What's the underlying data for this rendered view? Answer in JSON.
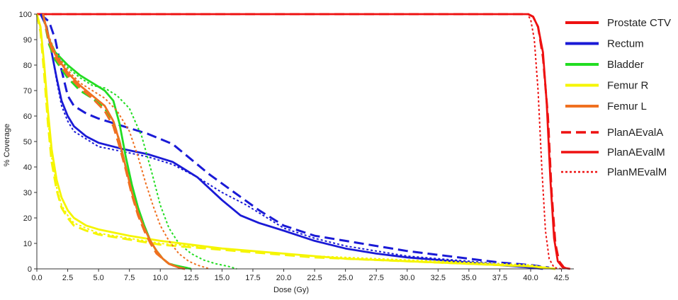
{
  "chart_data": {
    "type": "line",
    "xlabel": "Dose (Gy)",
    "ylabel": "% Coverage",
    "xlim": [
      0,
      43.5
    ],
    "ylim": [
      0,
      100
    ],
    "xticks": [
      "0.0",
      "2.5",
      "5.0",
      "7.5",
      "10.0",
      "12.5",
      "15.0",
      "17.5",
      "20.0",
      "22.5",
      "25.0",
      "27.5",
      "30.0",
      "32.5",
      "35.0",
      "37.5",
      "40.0",
      "42.5"
    ],
    "yticks": [
      "0",
      "10",
      "20",
      "30",
      "40",
      "50",
      "60",
      "70",
      "80",
      "90",
      "100"
    ],
    "grid": false,
    "legend_position": "right",
    "structures": [
      {
        "name": "Prostate CTV",
        "color": "#ee1111"
      },
      {
        "name": "Rectum",
        "color": "#1a1ad6"
      },
      {
        "name": "Bladder",
        "color": "#22dd22"
      },
      {
        "name": "Femur R",
        "color": "#f5f500"
      },
      {
        "name": "Femur L",
        "color": "#f07020"
      }
    ],
    "plans": [
      {
        "name": "PlanAEvalA",
        "style": "dashed"
      },
      {
        "name": "PlanAEvalM",
        "style": "solid"
      },
      {
        "name": "PlanMEvalM",
        "style": "dotted"
      }
    ],
    "series": [
      {
        "structure": "Prostate CTV",
        "plan": "PlanAEvalM",
        "points": [
          [
            0,
            100
          ],
          [
            39.8,
            100
          ],
          [
            40.2,
            99
          ],
          [
            40.6,
            95
          ],
          [
            41,
            85
          ],
          [
            41.3,
            65
          ],
          [
            41.6,
            35
          ],
          [
            41.9,
            12
          ],
          [
            42.2,
            3
          ],
          [
            42.6,
            0.5
          ],
          [
            43.2,
            0
          ]
        ]
      },
      {
        "structure": "Prostate CTV",
        "plan": "PlanAEvalA",
        "points": [
          [
            0,
            100
          ],
          [
            39.8,
            100
          ],
          [
            40.2,
            99
          ],
          [
            40.6,
            95
          ],
          [
            41,
            83
          ],
          [
            41.4,
            60
          ],
          [
            41.7,
            30
          ],
          [
            42,
            10
          ],
          [
            42.3,
            3
          ],
          [
            42.7,
            0.5
          ],
          [
            43.2,
            0
          ]
        ]
      },
      {
        "structure": "Prostate CTV",
        "plan": "PlanMEvalM",
        "points": [
          [
            0,
            100
          ],
          [
            39.7,
            100
          ],
          [
            40,
            98
          ],
          [
            40.3,
            90
          ],
          [
            40.6,
            70
          ],
          [
            40.9,
            40
          ],
          [
            41.2,
            15
          ],
          [
            41.5,
            4
          ],
          [
            41.9,
            0.5
          ],
          [
            42.5,
            0
          ]
        ]
      },
      {
        "structure": "Rectum",
        "plan": "PlanAEvalM",
        "points": [
          [
            0.3,
            100
          ],
          [
            0.8,
            95
          ],
          [
            1.2,
            85
          ],
          [
            1.6,
            75
          ],
          [
            2,
            66
          ],
          [
            2.5,
            60
          ],
          [
            3,
            56
          ],
          [
            4,
            52
          ],
          [
            5,
            49.5
          ],
          [
            7,
            47
          ],
          [
            9,
            45
          ],
          [
            11,
            42
          ],
          [
            13,
            36
          ],
          [
            15,
            27
          ],
          [
            16.5,
            21
          ],
          [
            18,
            18
          ],
          [
            20,
            15
          ],
          [
            22.5,
            11
          ],
          [
            25,
            8
          ],
          [
            27.5,
            6
          ],
          [
            30,
            4.5
          ],
          [
            32.5,
            3.5
          ],
          [
            35,
            2.5
          ],
          [
            37.5,
            1.5
          ],
          [
            40,
            0.5
          ],
          [
            41,
            0
          ]
        ]
      },
      {
        "structure": "Rectum",
        "plan": "PlanAEvalA",
        "points": [
          [
            0.3,
            100
          ],
          [
            1,
            97
          ],
          [
            1.5,
            90
          ],
          [
            2,
            78
          ],
          [
            2.5,
            68
          ],
          [
            3,
            64
          ],
          [
            4,
            61
          ],
          [
            5,
            59
          ],
          [
            7,
            56
          ],
          [
            9,
            53
          ],
          [
            11,
            49
          ],
          [
            12.5,
            43
          ],
          [
            14,
            37
          ],
          [
            16,
            30
          ],
          [
            18,
            23
          ],
          [
            20,
            17
          ],
          [
            22.5,
            13
          ],
          [
            25,
            11
          ],
          [
            27.5,
            9
          ],
          [
            30,
            7
          ],
          [
            32.5,
            5.5
          ],
          [
            35,
            4
          ],
          [
            37.5,
            2.5
          ],
          [
            40,
            1.5
          ],
          [
            41.5,
            0.5
          ]
        ]
      },
      {
        "structure": "Rectum",
        "plan": "PlanMEvalM",
        "points": [
          [
            0.3,
            100
          ],
          [
            0.8,
            95
          ],
          [
            1.2,
            85
          ],
          [
            1.6,
            74
          ],
          [
            2,
            64
          ],
          [
            2.5,
            58
          ],
          [
            3,
            54
          ],
          [
            4,
            51
          ],
          [
            5,
            48
          ],
          [
            7,
            46
          ],
          [
            9,
            44
          ],
          [
            11,
            41
          ],
          [
            13,
            36
          ],
          [
            15,
            30
          ],
          [
            17,
            25
          ],
          [
            19,
            19
          ],
          [
            20,
            16
          ],
          [
            22.5,
            12
          ],
          [
            25,
            9
          ],
          [
            27.5,
            7
          ],
          [
            30,
            5
          ],
          [
            32.5,
            4
          ],
          [
            35,
            3
          ],
          [
            37.5,
            2
          ],
          [
            40,
            1
          ],
          [
            41,
            0
          ]
        ]
      },
      {
        "structure": "Bladder",
        "plan": "PlanAEvalM",
        "points": [
          [
            0.5,
            100
          ],
          [
            1,
            90
          ],
          [
            1.5,
            85
          ],
          [
            2.5,
            80
          ],
          [
            3.5,
            76
          ],
          [
            4.5,
            73
          ],
          [
            5.5,
            70
          ],
          [
            6.2,
            66
          ],
          [
            6.7,
            57
          ],
          [
            7.2,
            44
          ],
          [
            7.7,
            33
          ],
          [
            8.2,
            24
          ],
          [
            8.7,
            17
          ],
          [
            9.2,
            11
          ],
          [
            9.7,
            7
          ],
          [
            10.2,
            4
          ],
          [
            10.7,
            2
          ],
          [
            11.5,
            1
          ],
          [
            12.5,
            0
          ]
        ]
      },
      {
        "structure": "Bladder",
        "plan": "PlanAEvalA",
        "points": [
          [
            0.5,
            100
          ],
          [
            1,
            88
          ],
          [
            1.5,
            82
          ],
          [
            2.5,
            75
          ],
          [
            3.5,
            70
          ],
          [
            4.5,
            67
          ],
          [
            5.5,
            63
          ],
          [
            6.2,
            58
          ],
          [
            6.7,
            50
          ],
          [
            7.2,
            40
          ],
          [
            7.7,
            31
          ],
          [
            8.2,
            23
          ],
          [
            8.7,
            16
          ],
          [
            9.2,
            11
          ],
          [
            9.7,
            7
          ],
          [
            10.2,
            4
          ],
          [
            10.7,
            2
          ],
          [
            11.5,
            1
          ],
          [
            12.5,
            0
          ]
        ]
      },
      {
        "structure": "Bladder",
        "plan": "PlanMEvalM",
        "points": [
          [
            0.5,
            100
          ],
          [
            1,
            90
          ],
          [
            1.5,
            84
          ],
          [
            2.5,
            79
          ],
          [
            3.5,
            75
          ],
          [
            4.5,
            72
          ],
          [
            5.5,
            71
          ],
          [
            6.5,
            68
          ],
          [
            7.5,
            63
          ],
          [
            8.5,
            52
          ],
          [
            9.3,
            38
          ],
          [
            10,
            25
          ],
          [
            10.7,
            16
          ],
          [
            11.5,
            10
          ],
          [
            12.5,
            6
          ],
          [
            13.5,
            3.5
          ],
          [
            14.5,
            2
          ],
          [
            15.5,
            1
          ],
          [
            16.2,
            0
          ]
        ]
      },
      {
        "structure": "Femur R",
        "plan": "PlanAEvalM",
        "points": [
          [
            0,
            100
          ],
          [
            0.3,
            95
          ],
          [
            0.6,
            80
          ],
          [
            0.9,
            62
          ],
          [
            1.2,
            47
          ],
          [
            1.6,
            35
          ],
          [
            2,
            28
          ],
          [
            2.5,
            23
          ],
          [
            3,
            20
          ],
          [
            4,
            17
          ],
          [
            5,
            15.5
          ],
          [
            7.5,
            13
          ],
          [
            10,
            11
          ],
          [
            12.5,
            9.5
          ],
          [
            15,
            8
          ],
          [
            17.5,
            7
          ],
          [
            20,
            6
          ],
          [
            22.5,
            5
          ],
          [
            25,
            4
          ],
          [
            27.5,
            3.5
          ],
          [
            30,
            3
          ],
          [
            32.5,
            2.5
          ],
          [
            35,
            2
          ],
          [
            37.5,
            1.5
          ],
          [
            40,
            1
          ],
          [
            42,
            0
          ]
        ]
      },
      {
        "structure": "Femur R",
        "plan": "PlanAEvalA",
        "points": [
          [
            0,
            100
          ],
          [
            0.3,
            93
          ],
          [
            0.6,
            76
          ],
          [
            0.9,
            57
          ],
          [
            1.2,
            42
          ],
          [
            1.6,
            31
          ],
          [
            2,
            24
          ],
          [
            2.5,
            20
          ],
          [
            3,
            17
          ],
          [
            4,
            15
          ],
          [
            5,
            13.5
          ],
          [
            7.5,
            11.5
          ],
          [
            10,
            9.5
          ],
          [
            12.5,
            8.5
          ],
          [
            15,
            7.5
          ],
          [
            17.5,
            6.5
          ],
          [
            20,
            5.5
          ],
          [
            22.5,
            4.5
          ],
          [
            25,
            4
          ],
          [
            27.5,
            3.5
          ],
          [
            30,
            3
          ],
          [
            32.5,
            2.5
          ],
          [
            35,
            2
          ],
          [
            37.5,
            1.5
          ],
          [
            40,
            1
          ],
          [
            42,
            0
          ]
        ]
      },
      {
        "structure": "Femur R",
        "plan": "PlanMEvalM",
        "points": [
          [
            0,
            100
          ],
          [
            0.3,
            94
          ],
          [
            0.6,
            78
          ],
          [
            0.9,
            59
          ],
          [
            1.2,
            44
          ],
          [
            1.6,
            32
          ],
          [
            2,
            25
          ],
          [
            2.5,
            21
          ],
          [
            3,
            18
          ],
          [
            4,
            16
          ],
          [
            5,
            14
          ],
          [
            7.5,
            12
          ],
          [
            10,
            10
          ],
          [
            12.5,
            9
          ],
          [
            15,
            8
          ],
          [
            17.5,
            7
          ],
          [
            20,
            6
          ],
          [
            22.5,
            5
          ],
          [
            25,
            4.5
          ],
          [
            27.5,
            4
          ],
          [
            30,
            3.5
          ],
          [
            32.5,
            3
          ],
          [
            35,
            2.5
          ],
          [
            37.5,
            2
          ],
          [
            40,
            1.5
          ],
          [
            42,
            0
          ]
        ]
      },
      {
        "structure": "Femur L",
        "plan": "PlanAEvalM",
        "points": [
          [
            0.5,
            100
          ],
          [
            1,
            90
          ],
          [
            1.5,
            84
          ],
          [
            2.5,
            77
          ],
          [
            3.5,
            72
          ],
          [
            4.5,
            68
          ],
          [
            5.5,
            64
          ],
          [
            6.2,
            58
          ],
          [
            6.7,
            50
          ],
          [
            7.2,
            40
          ],
          [
            7.7,
            30
          ],
          [
            8.2,
            22
          ],
          [
            8.7,
            16
          ],
          [
            9.2,
            11
          ],
          [
            9.7,
            7
          ],
          [
            10.2,
            4
          ],
          [
            10.7,
            2
          ],
          [
            11.5,
            0.5
          ],
          [
            12,
            0
          ]
        ]
      },
      {
        "structure": "Femur L",
        "plan": "PlanAEvalA",
        "points": [
          [
            0.5,
            100
          ],
          [
            1,
            89
          ],
          [
            1.5,
            83
          ],
          [
            2.5,
            76
          ],
          [
            3.5,
            71
          ],
          [
            4.5,
            67
          ],
          [
            5.5,
            62
          ],
          [
            6.2,
            56
          ],
          [
            6.7,
            48
          ],
          [
            7.2,
            39
          ],
          [
            7.7,
            29
          ],
          [
            8.2,
            21
          ],
          [
            8.7,
            15
          ],
          [
            9.2,
            10
          ],
          [
            9.7,
            6
          ],
          [
            10.2,
            4
          ],
          [
            10.7,
            2
          ],
          [
            11.5,
            0.5
          ],
          [
            12,
            0
          ]
        ]
      },
      {
        "structure": "Femur L",
        "plan": "PlanMEvalM",
        "points": [
          [
            0.5,
            100
          ],
          [
            1,
            91
          ],
          [
            1.5,
            85
          ],
          [
            2.5,
            78
          ],
          [
            3.5,
            73
          ],
          [
            4.5,
            70
          ],
          [
            5.5,
            67
          ],
          [
            6.5,
            62
          ],
          [
            7.5,
            54
          ],
          [
            8.2,
            44
          ],
          [
            8.8,
            34
          ],
          [
            9.4,
            25
          ],
          [
            10,
            17
          ],
          [
            10.7,
            11
          ],
          [
            11.5,
            6
          ],
          [
            12.3,
            3
          ],
          [
            13,
            1.5
          ],
          [
            14,
            0
          ]
        ]
      }
    ]
  }
}
